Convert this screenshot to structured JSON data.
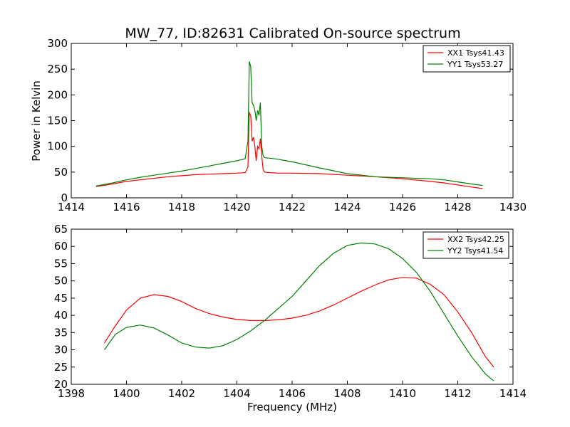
{
  "title": "MW_77, ID:82631 Calibrated On-source spectrum",
  "chart_data": [
    {
      "type": "line",
      "ylabel": "Power in Kelvin",
      "xlabel": "",
      "xlim": [
        1414,
        1430
      ],
      "ylim": [
        0,
        300
      ],
      "xticks": [
        1414,
        1416,
        1418,
        1420,
        1422,
        1424,
        1426,
        1428,
        1430
      ],
      "yticks": [
        0,
        50,
        100,
        150,
        200,
        250,
        300
      ],
      "grid": false,
      "legend_position": "top-right",
      "series": [
        {
          "name": "XX1 Tsys41.43",
          "color": "#ff0000",
          "x": [
            1414.9,
            1415.5,
            1416.0,
            1416.5,
            1417.0,
            1417.5,
            1418.0,
            1418.5,
            1419.0,
            1419.5,
            1420.0,
            1420.3,
            1420.4,
            1420.45,
            1420.5,
            1420.55,
            1420.6,
            1420.65,
            1420.7,
            1420.75,
            1420.8,
            1420.85,
            1420.9,
            1420.95,
            1421.0,
            1421.2,
            1421.5,
            1422.0,
            1423.0,
            1424.0,
            1425.0,
            1426.0,
            1427.0,
            1427.5,
            1428.0,
            1428.5,
            1428.9
          ],
          "y": [
            22,
            27,
            32,
            35,
            38,
            41,
            43,
            45,
            46,
            47,
            48,
            49,
            60,
            165,
            160,
            110,
            118,
            100,
            72,
            100,
            95,
            115,
            80,
            55,
            50,
            49,
            48,
            48,
            47,
            44,
            41,
            37,
            32,
            29,
            25,
            21,
            18
          ]
        },
        {
          "name": "YY1 Tsys53.27",
          "color": "#008000",
          "x": [
            1414.9,
            1415.5,
            1416.0,
            1416.5,
            1417.0,
            1417.5,
            1418.0,
            1418.5,
            1419.0,
            1419.5,
            1420.0,
            1420.3,
            1420.4,
            1420.45,
            1420.5,
            1420.55,
            1420.6,
            1420.65,
            1420.7,
            1420.75,
            1420.8,
            1420.85,
            1420.9,
            1420.95,
            1421.0,
            1421.2,
            1421.5,
            1422.0,
            1423.0,
            1424.0,
            1425.0,
            1426.0,
            1427.0,
            1427.5,
            1428.0,
            1428.5,
            1428.9
          ],
          "y": [
            23,
            29,
            35,
            40,
            44,
            48,
            52,
            57,
            62,
            67,
            72,
            76,
            110,
            265,
            255,
            185,
            180,
            170,
            150,
            170,
            160,
            185,
            100,
            82,
            78,
            77,
            75,
            70,
            58,
            47,
            41,
            39,
            37,
            35,
            31,
            27,
            24
          ]
        }
      ]
    },
    {
      "type": "line",
      "xlabel": "Frequency (MHz)",
      "ylabel": "",
      "xlim": [
        1398,
        1414
      ],
      "ylim": [
        20,
        65
      ],
      "xticks": [
        1398,
        1400,
        1402,
        1404,
        1406,
        1408,
        1410,
        1412,
        1414
      ],
      "yticks": [
        20,
        25,
        30,
        35,
        40,
        45,
        50,
        55,
        60,
        65
      ],
      "grid": false,
      "legend_position": "top-right",
      "series": [
        {
          "name": "XX2 Tsys42.25",
          "color": "#ff0000",
          "x": [
            1399.2,
            1399.6,
            1400.0,
            1400.5,
            1401.0,
            1401.5,
            1402.0,
            1402.5,
            1403.0,
            1403.5,
            1404.0,
            1404.5,
            1405.0,
            1405.5,
            1406.0,
            1406.5,
            1407.0,
            1407.5,
            1408.0,
            1408.5,
            1409.0,
            1409.5,
            1410.0,
            1410.5,
            1411.0,
            1411.5,
            1412.0,
            1412.5,
            1413.0,
            1413.3
          ],
          "y": [
            32,
            37,
            41.5,
            45,
            46,
            45.5,
            44,
            42,
            40.5,
            39.5,
            38.8,
            38.5,
            38.5,
            38.7,
            39.2,
            40,
            41.3,
            43,
            45,
            47,
            48.8,
            50.3,
            51,
            50.8,
            49,
            46,
            41,
            35,
            28,
            25
          ]
        },
        {
          "name": "YY2 Tsys41.54",
          "color": "#008000",
          "x": [
            1399.2,
            1399.6,
            1400.0,
            1400.5,
            1401.0,
            1401.5,
            1402.0,
            1402.5,
            1403.0,
            1403.5,
            1404.0,
            1404.5,
            1405.0,
            1405.5,
            1406.0,
            1406.5,
            1407.0,
            1407.5,
            1408.0,
            1408.5,
            1409.0,
            1409.5,
            1410.0,
            1410.5,
            1411.0,
            1411.5,
            1412.0,
            1412.5,
            1413.0,
            1413.3
          ],
          "y": [
            30,
            34.5,
            36.5,
            37.2,
            36.3,
            34.3,
            32,
            30.8,
            30.5,
            31.2,
            33,
            35.5,
            38.5,
            42,
            45.5,
            50,
            54.5,
            58,
            60.3,
            61,
            60.7,
            59.3,
            56.5,
            52.5,
            47,
            40.5,
            34,
            28,
            23,
            21
          ]
        }
      ]
    }
  ]
}
